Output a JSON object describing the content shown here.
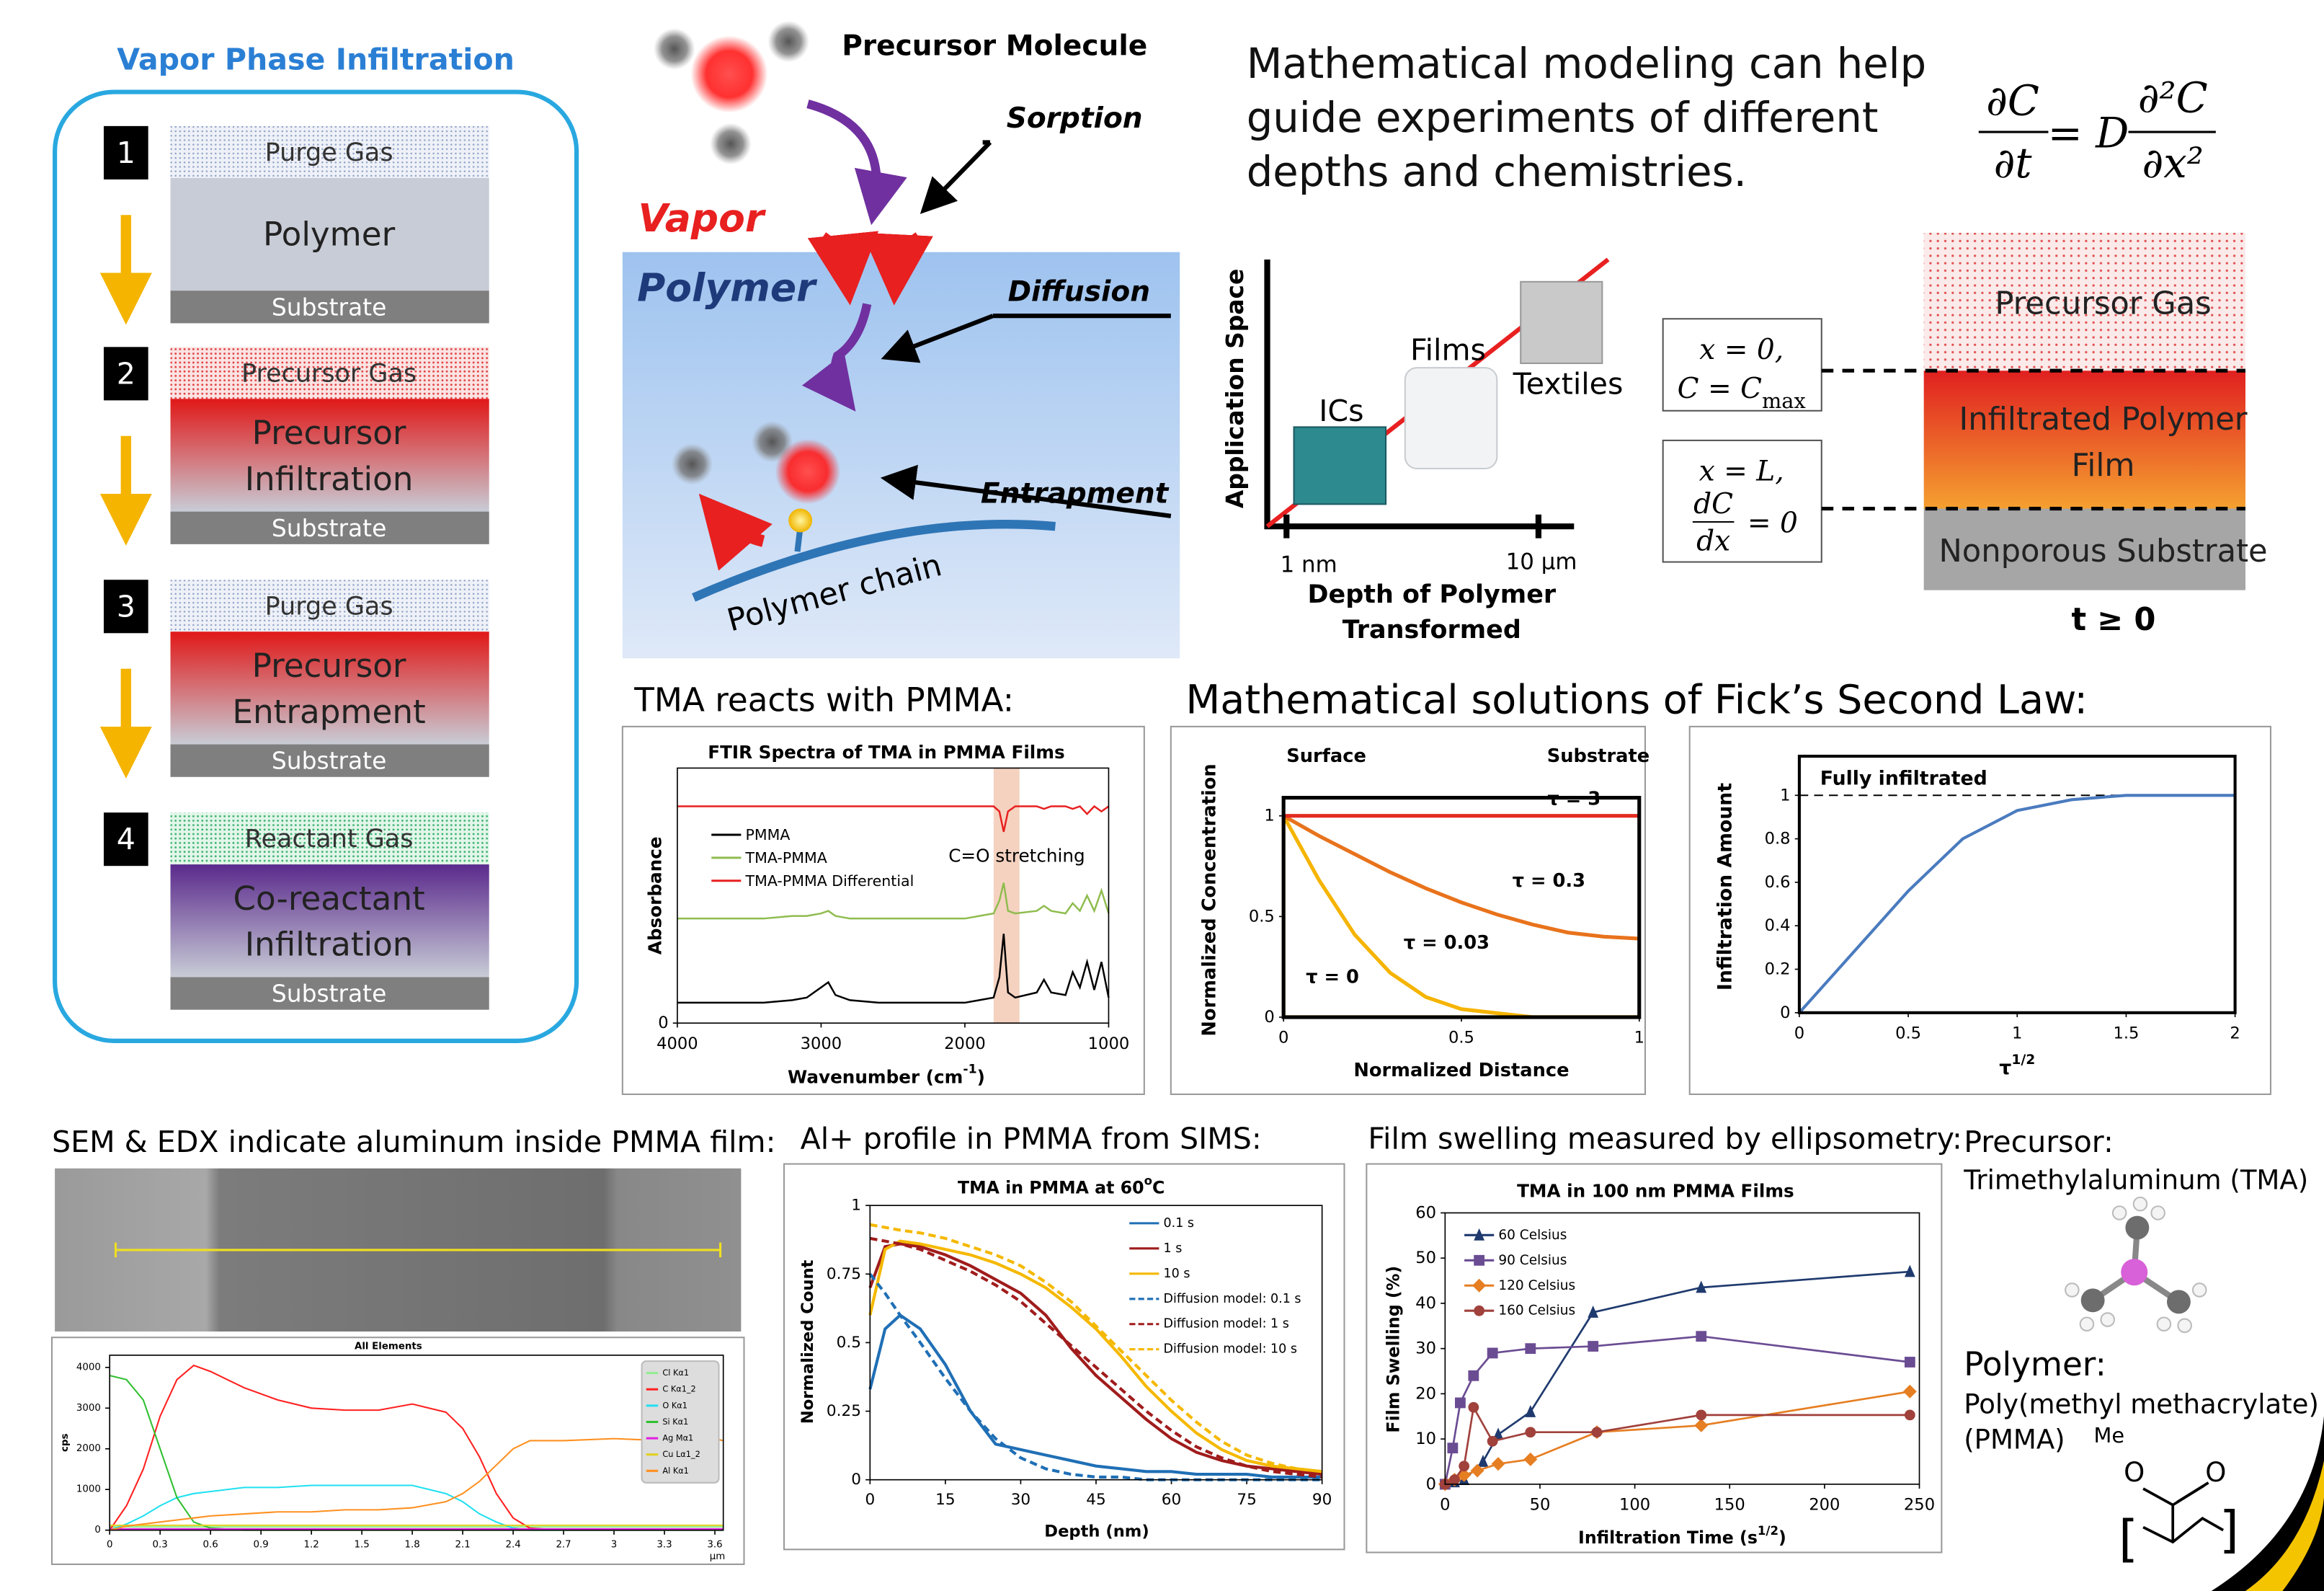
{
  "left_panel": {
    "title": "Vapor Phase Infiltration",
    "steps": [
      {
        "number": "1",
        "gas": "Purge Gas",
        "layer": [
          "Polymer"
        ],
        "substrate": "Substrate"
      },
      {
        "number": "2",
        "gas": "Precursor Gas",
        "layer": [
          "Precursor",
          "Infiltration"
        ],
        "substrate": "Substrate"
      },
      {
        "number": "3",
        "gas": "Purge Gas",
        "layer": [
          "Precursor",
          "Entrapment"
        ],
        "substrate": "Substrate"
      },
      {
        "number": "4",
        "gas": "Reactant Gas",
        "layer": [
          "Co-reactant",
          "Infiltration"
        ],
        "substrate": "Substrate"
      }
    ]
  },
  "mechanism": {
    "precursor": "Precursor Molecule",
    "vapor": "Vapor",
    "polymer": "Polymer",
    "sorption": "Sorption",
    "diffusion": "Diffusion",
    "entrapment": "Entrapment",
    "chain": "Polymer chain"
  },
  "modeling": {
    "text": [
      "Mathematical modeling can help",
      "guide experiments of different",
      "depths and chemistries."
    ],
    "equation": {
      "lhs_num": "∂C",
      "lhs_den": "∂t",
      "equals": "= D",
      "rhs_num": "∂²C",
      "rhs_den": "∂x²"
    }
  },
  "application": {
    "ylabel": "Application Space",
    "xlabel": [
      "Depth of Polymer",
      "Transformed"
    ],
    "ticks": [
      "1 nm",
      "10 μm"
    ],
    "examples": [
      "ICs",
      "Films",
      "Textiles"
    ]
  },
  "boundary": {
    "bc1_line1": "x = 0,",
    "bc1_line2": "C = C",
    "bc1_sub": "max",
    "bc2_line1": "x = L,",
    "bc2_num": "dC",
    "bc2_den": "dx",
    "bc2_rhs": "= 0"
  },
  "layers": {
    "gas": "Precursor Gas",
    "film": [
      "Infiltrated Polymer",
      "Film"
    ],
    "substrate": "Nonporous Substrate",
    "time": "t ≥ 0"
  },
  "headers": {
    "ftir": "TMA reacts with PMMA:",
    "fick": "Mathematical solutions of Fick’s Second Law:",
    "sem": "SEM & EDX indicate aluminum inside PMMA film:",
    "sims": "Al+ profile in PMMA from SIMS:",
    "ellipsometry": "Film swelling measured by ellipsometry:"
  },
  "materials": {
    "precursor_label": "Precursor:",
    "precursor": "Trimethylaluminum (TMA)",
    "polymer_label": "Polymer:",
    "polymer": [
      "Poly(methyl methacrylate)",
      "(PMMA)"
    ],
    "structure": [
      "Me",
      "O",
      "O",
      "[",
      "]"
    ]
  },
  "chart_data": [
    {
      "type": "line",
      "title": "FTIR Spectra of TMA in PMMA Films",
      "xlabel": "Wavenumber (cm",
      "xlabel_sup": "-1",
      "xlabel_end": ")",
      "ylabel": "Absorbance",
      "xlim": [
        4000,
        1000
      ],
      "xticks": [
        4000,
        3000,
        2000,
        1000
      ],
      "ylim": [
        0,
        1
      ],
      "yticks": [
        0
      ],
      "annotation": "C=O stretching",
      "highlight_range": [
        1800,
        1620
      ],
      "x": [
        4000,
        3800,
        3600,
        3400,
        3200,
        3100,
        3000,
        2950,
        2900,
        2800,
        2600,
        2400,
        2200,
        2000,
        1900,
        1800,
        1760,
        1730,
        1700,
        1650,
        1500,
        1450,
        1400,
        1300,
        1250,
        1200,
        1150,
        1100,
        1050,
        1000
      ],
      "series": [
        {
          "name": "PMMA",
          "color": "#000000",
          "values": [
            0.08,
            0.08,
            0.08,
            0.08,
            0.09,
            0.1,
            0.14,
            0.16,
            0.11,
            0.09,
            0.08,
            0.08,
            0.08,
            0.08,
            0.09,
            0.1,
            0.18,
            0.35,
            0.12,
            0.1,
            0.12,
            0.17,
            0.12,
            0.11,
            0.2,
            0.14,
            0.24,
            0.13,
            0.24,
            0.1
          ]
        },
        {
          "name": "TMA-PMMA",
          "color": "#8fbc4f",
          "values": [
            0.41,
            0.41,
            0.41,
            0.41,
            0.42,
            0.42,
            0.43,
            0.44,
            0.42,
            0.41,
            0.41,
            0.41,
            0.41,
            0.41,
            0.42,
            0.43,
            0.48,
            0.55,
            0.44,
            0.43,
            0.44,
            0.46,
            0.44,
            0.43,
            0.47,
            0.44,
            0.5,
            0.44,
            0.52,
            0.43
          ]
        },
        {
          "name": "TMA-PMMA Differential",
          "color": "#e82020",
          "values": [
            0.85,
            0.85,
            0.85,
            0.85,
            0.85,
            0.85,
            0.85,
            0.85,
            0.85,
            0.85,
            0.85,
            0.85,
            0.85,
            0.85,
            0.85,
            0.85,
            0.83,
            0.75,
            0.83,
            0.85,
            0.85,
            0.84,
            0.85,
            0.85,
            0.84,
            0.85,
            0.82,
            0.85,
            0.83,
            0.85
          ]
        }
      ]
    },
    {
      "type": "line",
      "xlabel": "Normalized Distance",
      "ylabel": "Normalized Concentration",
      "annotations": [
        "Surface",
        "Substrate"
      ],
      "xlim": [
        0,
        1
      ],
      "xticks": [
        0,
        0.5,
        1
      ],
      "ylim": [
        0,
        1.09
      ],
      "yticks": [
        0,
        0.5,
        1
      ],
      "series": [
        {
          "name": "τ = 0",
          "color": "#ffd21f",
          "x": [
            0,
            0,
            1
          ],
          "values": [
            1,
            0,
            0
          ]
        },
        {
          "name": "τ = 0.03",
          "color": "#f5b400",
          "x": [
            0,
            0.1,
            0.2,
            0.3,
            0.4,
            0.5,
            0.6,
            0.7,
            0.8,
            0.9,
            1
          ],
          "values": [
            1,
            0.68,
            0.41,
            0.22,
            0.1,
            0.04,
            0.02,
            0,
            0,
            0,
            0
          ]
        },
        {
          "name": "τ = 0.3",
          "color": "#e8731c",
          "x": [
            0,
            0.1,
            0.2,
            0.3,
            0.4,
            0.5,
            0.6,
            0.7,
            0.8,
            0.9,
            1
          ],
          "values": [
            1,
            0.9,
            0.81,
            0.72,
            0.64,
            0.57,
            0.51,
            0.46,
            0.42,
            0.4,
            0.39
          ]
        },
        {
          "name": "τ = 3",
          "color": "#e32b1f",
          "x": [
            0,
            1
          ],
          "values": [
            1,
            1
          ]
        }
      ]
    },
    {
      "type": "line",
      "xlabel": "τ",
      "xlabel_sup": "1/2",
      "ylabel": "Infiltration Amount",
      "annotation": "Fully infiltrated",
      "reference_line": 1,
      "xlim": [
        0,
        2
      ],
      "xticks": [
        0,
        0.5,
        1,
        1.5,
        2
      ],
      "ylim": [
        0,
        1.18
      ],
      "yticks": [
        0,
        0.2,
        0.4,
        0.6,
        0.8,
        1
      ],
      "x": [
        0,
        0.25,
        0.5,
        0.75,
        1,
        1.25,
        1.5,
        1.75,
        2
      ],
      "series": [
        {
          "color": "#4a7bbf",
          "values": [
            0,
            0.28,
            0.56,
            0.8,
            0.93,
            0.98,
            1,
            1,
            1
          ]
        }
      ]
    },
    {
      "type": "line",
      "title": "All Elements",
      "ylabel": "cps",
      "xunit": "μm",
      "xlim": [
        0,
        3.65
      ],
      "xticks": [
        0,
        0.3,
        0.6,
        0.9,
        1.2,
        1.5,
        1.8,
        2.1,
        2.4,
        2.7,
        3,
        3.3,
        3.6
      ],
      "ylim": [
        0,
        4300
      ],
      "yticks": [
        0,
        1000,
        2000,
        3000,
        4000
      ],
      "x": [
        0,
        0.1,
        0.2,
        0.3,
        0.4,
        0.5,
        0.6,
        0.8,
        1.0,
        1.2,
        1.4,
        1.6,
        1.8,
        2.0,
        2.1,
        2.2,
        2.3,
        2.4,
        2.5,
        2.7,
        3.0,
        3.3,
        3.6,
        3.65
      ],
      "series": [
        {
          "name": "Cl Kα1",
          "color": "#90ee90",
          "values": [
            80,
            80,
            80,
            80,
            80,
            80,
            80,
            80,
            80,
            80,
            80,
            80,
            80,
            80,
            80,
            80,
            80,
            80,
            80,
            80,
            80,
            80,
            80,
            80
          ]
        },
        {
          "name": "C Kα1_2",
          "color": "#ff2020",
          "values": [
            0,
            600,
            1500,
            2800,
            3700,
            4050,
            3900,
            3500,
            3200,
            3000,
            2950,
            2950,
            3100,
            2900,
            2500,
            1800,
            900,
            300,
            50,
            0,
            0,
            0,
            0,
            0
          ]
        },
        {
          "name": "O Kα1",
          "color": "#20e0f0",
          "values": [
            0,
            150,
            350,
            600,
            800,
            900,
            950,
            1050,
            1050,
            1100,
            1100,
            1100,
            1100,
            900,
            700,
            400,
            200,
            50,
            0,
            0,
            0,
            0,
            0,
            0
          ]
        },
        {
          "name": "Si Kα1",
          "color": "#30c030",
          "values": [
            3800,
            3700,
            3200,
            2000,
            800,
            200,
            50,
            0,
            0,
            0,
            0,
            0,
            0,
            0,
            0,
            0,
            0,
            0,
            0,
            0,
            0,
            0,
            0,
            0
          ]
        },
        {
          "name": "Ag Mα1",
          "color": "#e020e0",
          "values": [
            30,
            30,
            30,
            30,
            30,
            30,
            30,
            30,
            30,
            30,
            30,
            30,
            30,
            30,
            30,
            30,
            30,
            30,
            30,
            30,
            30,
            30,
            30,
            30
          ]
        },
        {
          "name": "Cu Lα1_2",
          "color": "#e0d020",
          "values": [
            120,
            120,
            120,
            120,
            120,
            120,
            120,
            120,
            120,
            120,
            120,
            120,
            120,
            120,
            120,
            120,
            120,
            120,
            120,
            120,
            120,
            120,
            120,
            120
          ]
        },
        {
          "name": "Al Kα1",
          "color": "#ff9020",
          "values": [
            0,
            100,
            150,
            200,
            250,
            300,
            350,
            400,
            450,
            450,
            500,
            500,
            550,
            700,
            900,
            1200,
            1600,
            2000,
            2200,
            2200,
            2250,
            2200,
            2250,
            2200
          ]
        }
      ]
    },
    {
      "type": "line",
      "title": "TMA in PMMA at 60",
      "title_sup": "o",
      "title_end": "C",
      "xlabel": "Depth (nm)",
      "ylabel": "Normalized Count",
      "xlim": [
        0,
        90
      ],
      "xticks": [
        0,
        15,
        30,
        45,
        60,
        75,
        90
      ],
      "ylim": [
        0,
        1
      ],
      "yticks": [
        0,
        0.25,
        0.5,
        0.75,
        1
      ],
      "x": [
        0,
        3,
        6,
        10,
        15,
        20,
        25,
        30,
        35,
        40,
        45,
        50,
        55,
        60,
        65,
        70,
        75,
        80,
        85,
        90
      ],
      "series": [
        {
          "name": "0.1 s",
          "color": "#1f6fb5",
          "values": [
            0.33,
            0.55,
            0.6,
            0.55,
            0.42,
            0.25,
            0.13,
            0.11,
            0.09,
            0.07,
            0.05,
            0.04,
            0.03,
            0.03,
            0.02,
            0.02,
            0.02,
            0.01,
            0.01,
            0.01
          ]
        },
        {
          "name": "1 s",
          "color": "#a01c1c",
          "values": [
            0.7,
            0.85,
            0.86,
            0.85,
            0.82,
            0.78,
            0.73,
            0.68,
            0.6,
            0.48,
            0.38,
            0.3,
            0.22,
            0.15,
            0.1,
            0.07,
            0.05,
            0.04,
            0.03,
            0.02
          ]
        },
        {
          "name": "10 s",
          "color": "#f5b800",
          "values": [
            0.6,
            0.84,
            0.87,
            0.86,
            0.84,
            0.82,
            0.79,
            0.75,
            0.7,
            0.63,
            0.55,
            0.45,
            0.34,
            0.25,
            0.17,
            0.11,
            0.07,
            0.05,
            0.04,
            0.03
          ]
        },
        {
          "name": "Diffusion model: 0.1 s",
          "color": "#1f6fb5",
          "dash": true,
          "values": [
            0.75,
            0.68,
            0.6,
            0.5,
            0.37,
            0.25,
            0.15,
            0.08,
            0.04,
            0.02,
            0.01,
            0.01,
            0,
            0,
            0,
            0,
            0,
            0,
            0,
            0
          ]
        },
        {
          "name": "Diffusion model: 1 s",
          "color": "#a01c1c",
          "dash": true,
          "values": [
            0.88,
            0.87,
            0.86,
            0.84,
            0.8,
            0.76,
            0.71,
            0.65,
            0.57,
            0.49,
            0.41,
            0.33,
            0.25,
            0.18,
            0.12,
            0.08,
            0.05,
            0.03,
            0.02,
            0.01
          ]
        },
        {
          "name": "Diffusion model: 10 s",
          "color": "#f5b800",
          "dash": true,
          "values": [
            0.93,
            0.92,
            0.91,
            0.9,
            0.88,
            0.85,
            0.82,
            0.78,
            0.72,
            0.65,
            0.56,
            0.47,
            0.38,
            0.29,
            0.21,
            0.14,
            0.09,
            0.06,
            0.04,
            0.03
          ]
        }
      ]
    },
    {
      "type": "line",
      "title": "TMA in 100 nm PMMA Films",
      "xlabel": "Infiltration Time (s",
      "xlabel_sup": "1/2",
      "xlabel_end": ")",
      "ylabel": "Film Swelling (%)",
      "xlim": [
        0,
        250
      ],
      "xticks": [
        0,
        50,
        100,
        150,
        200,
        250
      ],
      "ylim": [
        0,
        60
      ],
      "yticks": [
        0,
        10,
        20,
        30,
        40,
        50,
        60
      ],
      "series": [
        {
          "name": "60 Celsius",
          "color": "#1f3a6e",
          "marker": "triangle",
          "x": [
            0,
            5,
            10,
            20,
            28,
            45,
            78,
            135,
            245
          ],
          "values": [
            0,
            0.5,
            1,
            5,
            11,
            16,
            38,
            43.5,
            47
          ]
        },
        {
          "name": "90 Celsius",
          "color": "#6a4c93",
          "marker": "square",
          "x": [
            0,
            4,
            8,
            15,
            25,
            45,
            78,
            135,
            245
          ],
          "values": [
            0,
            8,
            18,
            24,
            29,
            30,
            30.5,
            32.7,
            27
          ]
        },
        {
          "name": "120 Celsius",
          "color": "#e67e22",
          "marker": "diamond",
          "x": [
            0,
            5,
            10,
            17,
            28,
            45,
            80,
            135,
            245
          ],
          "values": [
            0,
            1,
            2,
            3,
            4.5,
            5.5,
            11.5,
            13,
            20.5
          ]
        },
        {
          "name": "160 Celsius",
          "color": "#a0413c",
          "marker": "circle",
          "x": [
            0,
            5,
            10,
            15,
            25,
            45,
            80,
            135,
            245
          ],
          "values": [
            0,
            1,
            4,
            17,
            9.5,
            11.5,
            11.5,
            15.3,
            15.3
          ]
        }
      ]
    }
  ]
}
